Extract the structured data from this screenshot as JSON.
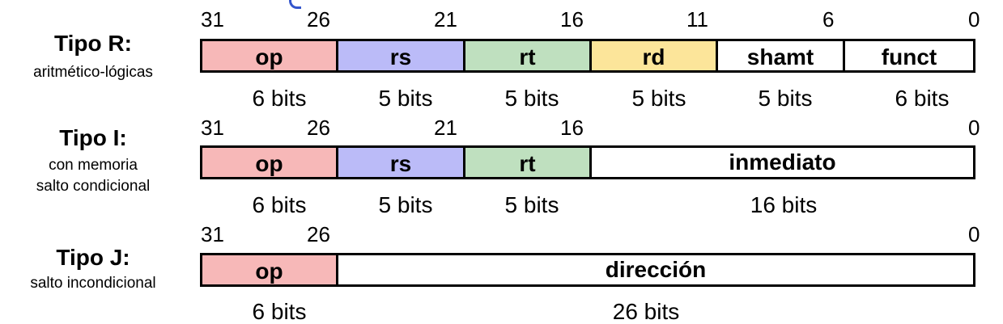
{
  "formats": [
    {
      "id": "r",
      "title": "Tipo R:",
      "subtitle": [
        "aritmético-lógicas"
      ],
      "ticks": [
        "31",
        "26",
        "21",
        "16",
        "11",
        "6",
        "0"
      ],
      "fields": [
        {
          "label": "op",
          "bits_label": "6 bits",
          "color": "#f7b8b8"
        },
        {
          "label": "rs",
          "bits_label": "5 bits",
          "color": "#bbbbf8"
        },
        {
          "label": "rt",
          "bits_label": "5 bits",
          "color": "#bfe0bf"
        },
        {
          "label": "rd",
          "bits_label": "5 bits",
          "color": "#fce59a"
        },
        {
          "label": "shamt",
          "bits_label": "5 bits",
          "color": "#ffffff"
        },
        {
          "label": "funct",
          "bits_label": "6 bits",
          "color": "#ffffff"
        }
      ]
    },
    {
      "id": "i",
      "title": "Tipo I:",
      "subtitle": [
        "con memoria",
        "salto condicional"
      ],
      "ticks": [
        "31",
        "26",
        "21",
        "16",
        "0"
      ],
      "fields": [
        {
          "label": "op",
          "bits_label": "6 bits",
          "color": "#f7b8b8"
        },
        {
          "label": "rs",
          "bits_label": "5 bits",
          "color": "#bbbbf8"
        },
        {
          "label": "rt",
          "bits_label": "5 bits",
          "color": "#bfe0bf"
        },
        {
          "label": "inmediato",
          "bits_label": "16 bits",
          "color": "#ffffff"
        }
      ]
    },
    {
      "id": "j",
      "title": "Tipo J:",
      "subtitle": [
        "salto incondicional"
      ],
      "ticks": [
        "31",
        "26",
        "0"
      ],
      "fields": [
        {
          "label": "op",
          "bits_label": "6 bits",
          "color": "#f7b8b8"
        },
        {
          "label": "dirección",
          "bits_label": "26 bits",
          "color": "#ffffff"
        }
      ]
    }
  ]
}
